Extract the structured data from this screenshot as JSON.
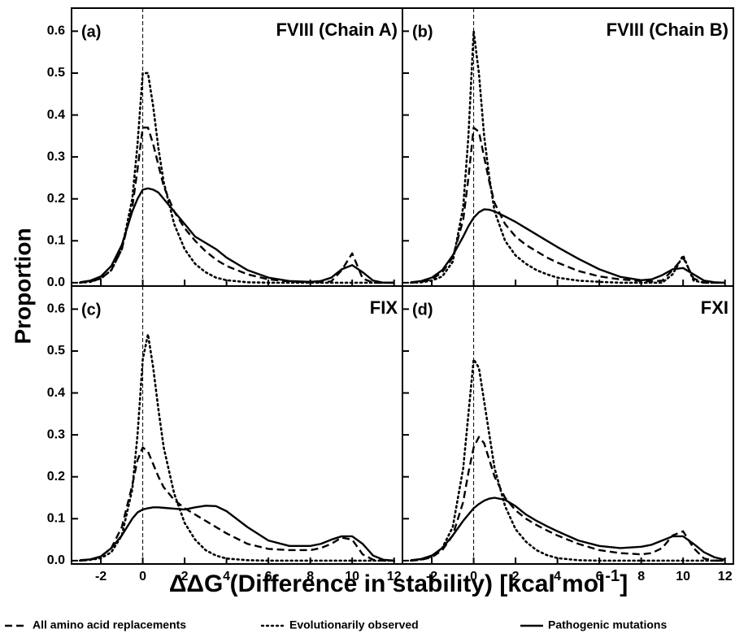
{
  "y_label": "Proportion",
  "x_label": {
    "text": "ΔΔG (Difference in stability) [kcal mol",
    "superscript": "-1",
    "suffix": "]"
  },
  "chart_data": [
    {
      "type": "line",
      "label": "(a)",
      "title": "FVIII (Chain A)",
      "x": [
        -3,
        -2.5,
        -2,
        -1.5,
        -1,
        -0.5,
        -0.25,
        0,
        0.25,
        0.5,
        0.75,
        1,
        1.5,
        2,
        2.5,
        3,
        3.5,
        4,
        5,
        6,
        7,
        8,
        8.5,
        9,
        9.5,
        10,
        10.5,
        11,
        11.5,
        12
      ],
      "series": [
        {
          "name": "All amino acid replacements",
          "color": "#000000",
          "line_style": "dashed",
          "values": [
            0,
            0.003,
            0.01,
            0.03,
            0.08,
            0.18,
            0.27,
            0.37,
            0.37,
            0.33,
            0.28,
            0.23,
            0.17,
            0.13,
            0.1,
            0.075,
            0.055,
            0.04,
            0.02,
            0.008,
            0.003,
            0.001,
            0.001,
            0.003,
            0.03,
            0.07,
            0.01,
            0,
            0,
            0
          ]
        },
        {
          "name": "Evolutionarily observed",
          "color": "#000000",
          "line_style": "dotted",
          "values": [
            0,
            0.002,
            0.01,
            0.03,
            0.08,
            0.2,
            0.33,
            0.5,
            0.5,
            0.42,
            0.32,
            0.24,
            0.14,
            0.08,
            0.045,
            0.025,
            0.012,
            0.006,
            0.001,
            0,
            0,
            0,
            0,
            0,
            0,
            0,
            0,
            0,
            0,
            0
          ]
        },
        {
          "name": "Pathogenic mutations",
          "color": "#000000",
          "line_style": "solid",
          "values": [
            0.001,
            0.005,
            0.015,
            0.04,
            0.09,
            0.17,
            0.2,
            0.222,
            0.225,
            0.222,
            0.215,
            0.2,
            0.17,
            0.14,
            0.11,
            0.095,
            0.08,
            0.06,
            0.03,
            0.012,
            0.004,
            0.002,
            0.004,
            0.012,
            0.032,
            0.042,
            0.025,
            0.005,
            0,
            0
          ]
        }
      ],
      "reference_x": 0,
      "xlim": [
        -3.4,
        12.4
      ],
      "xticks": [
        -2,
        0,
        2,
        4,
        6,
        8,
        10,
        12
      ],
      "ylim": [
        -0.008,
        0.655
      ],
      "yticks": [
        {
          "value": 0,
          "label": "0.0"
        },
        0.1,
        0.2,
        0.3,
        0.4,
        0.5,
        0.6
      ]
    },
    {
      "type": "line",
      "label": "(b)",
      "title": "FVIII (Chain B)",
      "x": [
        -3,
        -2.5,
        -2,
        -1.5,
        -1,
        -0.5,
        -0.25,
        0,
        0.25,
        0.5,
        0.75,
        1,
        1.5,
        2,
        2.5,
        3,
        3.5,
        4,
        5,
        6,
        7,
        8,
        8.5,
        9,
        9.5,
        10,
        10.5,
        11,
        11.5,
        12
      ],
      "series": [
        {
          "name": "All amino acid replacements",
          "color": "#000000",
          "line_style": "dashed",
          "values": [
            0,
            0.002,
            0.008,
            0.025,
            0.06,
            0.15,
            0.25,
            0.37,
            0.36,
            0.3,
            0.24,
            0.19,
            0.14,
            0.11,
            0.09,
            0.075,
            0.06,
            0.048,
            0.028,
            0.015,
            0.008,
            0.004,
            0.003,
            0.005,
            0.03,
            0.06,
            0.01,
            0,
            0,
            0
          ]
        },
        {
          "name": "Evolutionarily observed",
          "color": "#000000",
          "line_style": "dotted",
          "values": [
            0,
            0.001,
            0.005,
            0.015,
            0.05,
            0.18,
            0.35,
            0.6,
            0.5,
            0.35,
            0.25,
            0.17,
            0.1,
            0.065,
            0.045,
            0.03,
            0.02,
            0.012,
            0.005,
            0.002,
            0,
            0,
            0,
            0,
            0.02,
            0.065,
            0.005,
            0,
            0,
            0
          ]
        },
        {
          "name": "Pathogenic mutations",
          "color": "#000000",
          "line_style": "solid",
          "values": [
            0.001,
            0.004,
            0.012,
            0.03,
            0.065,
            0.11,
            0.135,
            0.155,
            0.168,
            0.175,
            0.174,
            0.17,
            0.158,
            0.145,
            0.13,
            0.115,
            0.1,
            0.085,
            0.057,
            0.032,
            0.014,
            0.006,
            0.008,
            0.018,
            0.032,
            0.035,
            0.02,
            0.005,
            0.001,
            0
          ]
        }
      ],
      "reference_x": 0,
      "xlim": [
        -3.4,
        12.4
      ],
      "xticks": [
        -2,
        0,
        2,
        4,
        6,
        8,
        10,
        12
      ],
      "ylim": [
        -0.008,
        0.655
      ],
      "yticks": [
        {
          "value": 0,
          "label": "0.0"
        },
        0.1,
        0.2,
        0.3,
        0.4,
        0.5,
        0.6
      ]
    },
    {
      "type": "line",
      "label": "(c)",
      "title": "FIX",
      "x": [
        -3,
        -2.5,
        -2,
        -1.5,
        -1,
        -0.5,
        -0.25,
        0,
        0.25,
        0.5,
        0.75,
        1,
        1.5,
        2,
        2.5,
        3,
        3.5,
        4,
        5,
        6,
        7,
        8,
        8.5,
        9,
        9.5,
        10,
        10.5,
        11,
        11.5,
        12
      ],
      "series": [
        {
          "name": "All amino acid replacements",
          "color": "#000000",
          "line_style": "dashed",
          "values": [
            0,
            0.002,
            0.01,
            0.03,
            0.08,
            0.18,
            0.24,
            0.27,
            0.26,
            0.23,
            0.2,
            0.175,
            0.145,
            0.125,
            0.11,
            0.095,
            0.08,
            0.065,
            0.04,
            0.028,
            0.025,
            0.025,
            0.03,
            0.04,
            0.055,
            0.05,
            0.015,
            0.002,
            0,
            0
          ]
        },
        {
          "name": "Evolutionarily observed",
          "color": "#000000",
          "line_style": "dotted",
          "values": [
            0,
            0.002,
            0.006,
            0.02,
            0.06,
            0.17,
            0.3,
            0.48,
            0.54,
            0.46,
            0.36,
            0.27,
            0.16,
            0.09,
            0.05,
            0.025,
            0.012,
            0.005,
            0.001,
            0,
            0,
            0,
            0,
            0,
            0,
            0,
            0,
            0,
            0,
            0
          ]
        },
        {
          "name": "Pathogenic mutations",
          "color": "#000000",
          "line_style": "solid",
          "values": [
            0.001,
            0.003,
            0.01,
            0.03,
            0.06,
            0.1,
            0.115,
            0.122,
            0.125,
            0.127,
            0.127,
            0.126,
            0.124,
            0.122,
            0.127,
            0.131,
            0.13,
            0.118,
            0.08,
            0.048,
            0.035,
            0.035,
            0.04,
            0.05,
            0.058,
            0.058,
            0.04,
            0.012,
            0.002,
            0
          ]
        }
      ],
      "reference_x": 0,
      "xlim": [
        -3.4,
        12.4
      ],
      "xticks": [
        -2,
        0,
        2,
        4,
        6,
        8,
        10,
        12
      ],
      "ylim": [
        -0.008,
        0.655
      ],
      "yticks": [
        {
          "value": 0,
          "label": "0.0"
        },
        0.1,
        0.2,
        0.3,
        0.4,
        0.5,
        0.6
      ]
    },
    {
      "type": "line",
      "label": "(d)",
      "title": "FXI",
      "x": [
        -3,
        -2.5,
        -2,
        -1.5,
        -1,
        -0.5,
        -0.25,
        0,
        0.25,
        0.5,
        0.75,
        1,
        1.5,
        2,
        2.5,
        3,
        3.5,
        4,
        5,
        6,
        7,
        8,
        8.5,
        9,
        9.5,
        10,
        10.5,
        11,
        11.5,
        12
      ],
      "series": [
        {
          "name": "All amino acid replacements",
          "color": "#000000",
          "line_style": "dashed",
          "values": [
            0,
            0.002,
            0.008,
            0.025,
            0.06,
            0.14,
            0.21,
            0.27,
            0.295,
            0.28,
            0.24,
            0.2,
            0.15,
            0.12,
            0.1,
            0.085,
            0.072,
            0.06,
            0.04,
            0.025,
            0.018,
            0.015,
            0.018,
            0.03,
            0.06,
            0.07,
            0.03,
            0.005,
            0,
            0
          ]
        },
        {
          "name": "Evolutionarily observed",
          "color": "#000000",
          "line_style": "dotted",
          "values": [
            0,
            0.003,
            0.01,
            0.03,
            0.08,
            0.22,
            0.35,
            0.48,
            0.46,
            0.38,
            0.3,
            0.22,
            0.13,
            0.075,
            0.045,
            0.025,
            0.013,
            0.006,
            0.001,
            0,
            0,
            0,
            0,
            0,
            0,
            0,
            0,
            0,
            0,
            0
          ]
        },
        {
          "name": "Pathogenic mutations",
          "color": "#000000",
          "line_style": "solid",
          "values": [
            0.001,
            0.004,
            0.012,
            0.03,
            0.06,
            0.095,
            0.11,
            0.125,
            0.135,
            0.143,
            0.148,
            0.15,
            0.145,
            0.13,
            0.11,
            0.095,
            0.082,
            0.07,
            0.048,
            0.035,
            0.03,
            0.033,
            0.038,
            0.048,
            0.058,
            0.058,
            0.04,
            0.02,
            0.008,
            0.002
          ]
        }
      ],
      "reference_x": 0,
      "xlim": [
        -3.4,
        12.4
      ],
      "xticks": [
        -2,
        0,
        2,
        4,
        6,
        8,
        10,
        12
      ],
      "ylim": [
        -0.008,
        0.655
      ],
      "yticks": [
        {
          "value": 0,
          "label": "0.0"
        },
        0.1,
        0.2,
        0.3,
        0.4,
        0.5,
        0.6
      ]
    }
  ]
}
